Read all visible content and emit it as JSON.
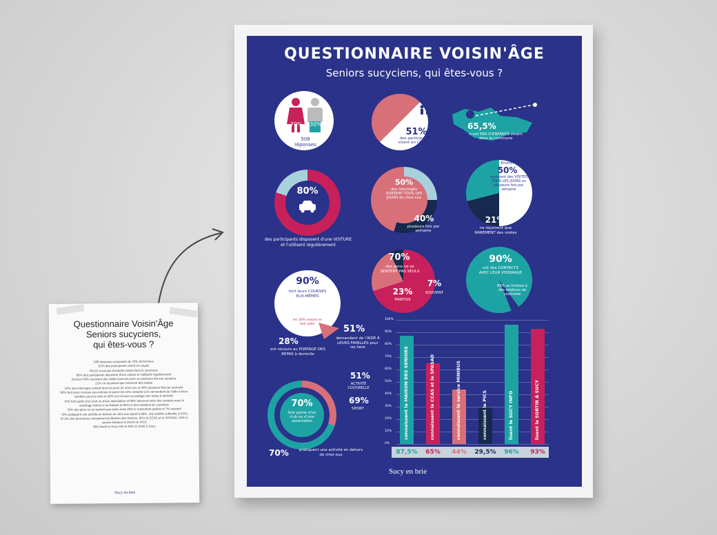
{
  "poster": {
    "title": "QUESTIONNAIRE VOISIN'ÂGE",
    "subtitle": "Seniors sucyciens, qui êtes-vous ?",
    "gender": {
      "women": "70%",
      "men": "30%",
      "count": "508",
      "count_label": "réponses"
    },
    "couple": {
      "value": "51%",
      "text": "des participants vivent en COUPLE"
    },
    "children": {
      "value": "65,5%",
      "text": "n'ont PAS D'ENFANTS vivant dans la commune"
    },
    "car": {
      "value": "80%",
      "text": "des participants disposent d'une VOITURE et l'utilisent régulièrement"
    },
    "out": {
      "value": "50%",
      "text": "des interrogés SORTENT TOUS LES JOURS de chez eux",
      "value2": "40%",
      "text2": "plusieurs fois par semaine"
    },
    "visits": {
      "prefix": "Environ",
      "value": "50%",
      "text": "reçoivent des VISITES TOUS LES JOURS ou plusieurs fois par semaine",
      "value2": "21%",
      "text2": "ne reçoivent que RAREMENT des visites"
    },
    "alone": {
      "value": "70%",
      "text": "des gens ne se SENTENT PAS SEULS",
      "value2": "23%",
      "text2": "PARFOIS",
      "value3": "7%",
      "text3": "SOUVENT"
    },
    "neighbors": {
      "value": "90%",
      "text": "ont des CONTACTS AVEC LEUR VOISINAGE",
      "sub": "85% se limitant à des relations de courtoisie"
    },
    "shopping": {
      "value": "90%",
      "text": "font leurs COURSES EUX-MÊMES",
      "sub": "les 10% restant se font aider",
      "value2": "28%",
      "text2": "ont recours au PORTAGE DES REPAS à domicile",
      "value3": "51%",
      "text3": "demandent de l'AIDE À LEURS FAMILLES pour les faire"
    },
    "clubs": {
      "value": "70%",
      "text": "font partie d'un club ou d'une association",
      "value2": "51%",
      "text2": "ACTIVITÉ CULTURELLE",
      "value3": "69%",
      "text3": "SPORT",
      "value4": "70%",
      "text4": "pratiquent une activité en dehors de chez eux"
    },
    "logo": "Sucy en brie"
  },
  "chart_data": {
    "type": "bar",
    "categories": [
      "connaissent la MAISON DES SENIORS",
      "connaissent le CCAS et le SPASAD",
      "connaissent le service MINIBUS",
      "connaissent le PICS",
      "lisent le SUCY INFO",
      "lisent le SORTIR À SUCY"
    ],
    "values": [
      87.5,
      65,
      44,
      29.5,
      96,
      93
    ],
    "value_labels": [
      "87,5%",
      "65%",
      "44%",
      "29,5%",
      "96%",
      "93%"
    ],
    "colors": [
      "#1ea3a5",
      "#c8205a",
      "#d8707a",
      "#152a4e",
      "#1ea3a5",
      "#c8205a"
    ],
    "ylim": [
      0,
      100
    ],
    "yticks": [
      "100%",
      "90%",
      "80%",
      "70%",
      "60%",
      "50%",
      "40%",
      "30%",
      "20%",
      "10%",
      "0%"
    ]
  },
  "note": {
    "title_lines": [
      "Questionnaire Voisin'Âge",
      "Seniors sucyciens,",
      "qui êtes-vous ?"
    ],
    "body": [
      "508 réponses composés de 70% de femmes",
      "51% des participants vivent en couple",
      "65,5% n'ont pas d'enfants vivant dans la commune",
      "80% des participants disposent d'une voiture et l'utilisent régulièrement",
      "Environ 50% reçoivent des visites tous les jours ou plusieurs fois par semaine",
      "21% ne reçoivent que rarement des visites",
      "50% des interrogés sortent tous les jours de chez eux et 40% plusieurs fois par semaine",
      "90% font leurs courses eux-mêmes et parmi les 10% restants 51% demandent de l'aide à leurs familles pour les faire et 28% ont recours au portage des repas à domicile",
      "70% font partie d'un club ou d'une association et 90% assurent avoir des contacts avec le voisinage même si se limitant (à 85%) à des relations de courtoisie",
      "70% des gens ne se sentent pas seuls mais 23% le ressentent parfois et 7% souvent",
      "70% pratiquent une activité en dehors de chez eux (sport à 69%, une activité culturelle à 51%)",
      "87,5% des personnes connaissent la Maison des Seniors, 65% le CCAS et le SPASAD, 44% le service Minibus et 29,5% le PICS",
      "96% lisent le Sucy Info et 93% le Sortir à Sucy"
    ],
    "logo": "Sucy en brie"
  }
}
